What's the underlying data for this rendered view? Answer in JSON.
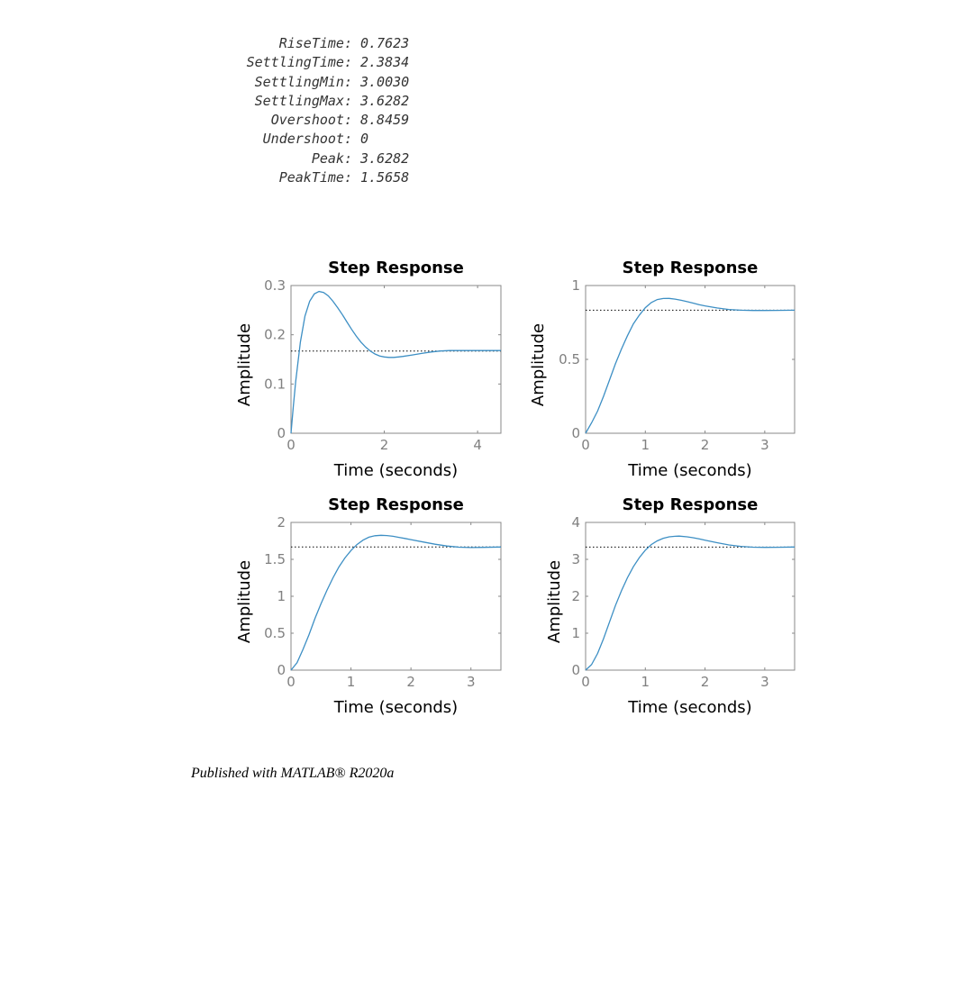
{
  "stepinfo": [
    {
      "key": "RiseTime:",
      "value": "0.7623"
    },
    {
      "key": "SettlingTime:",
      "value": "2.3834"
    },
    {
      "key": "SettlingMin:",
      "value": "3.0030"
    },
    {
      "key": "SettlingMax:",
      "value": "3.6282"
    },
    {
      "key": "Overshoot:",
      "value": "8.8459"
    },
    {
      "key": "Undershoot:",
      "value": "0"
    },
    {
      "key": "Peak:",
      "value": "3.6282"
    },
    {
      "key": "PeakTime:",
      "value": "1.5658"
    }
  ],
  "footer": "Published with MATLAB® R2020a",
  "colors": {
    "line": "#3d8fc4",
    "axis": "#888888",
    "final_value_line": "#000000"
  },
  "chart_data": [
    {
      "type": "line",
      "title": "Step Response",
      "xlabel": "Time (seconds)",
      "ylabel": "Amplitude",
      "xlim": [
        0,
        4.5
      ],
      "ylim": [
        0,
        0.3
      ],
      "xticks": [
        0,
        2,
        4
      ],
      "yticks": [
        0,
        0.1,
        0.2,
        0.3
      ],
      "final_value": 0.167,
      "x": [
        0,
        0.05,
        0.1,
        0.2,
        0.3,
        0.4,
        0.5,
        0.6,
        0.7,
        0.8,
        0.9,
        1.0,
        1.1,
        1.2,
        1.3,
        1.4,
        1.5,
        1.6,
        1.7,
        1.8,
        1.9,
        2.0,
        2.1,
        2.2,
        2.3,
        2.4,
        2.6,
        2.8,
        3.0,
        3.2,
        3.4,
        3.6,
        3.8,
        4.0,
        4.2,
        4.5
      ],
      "y": [
        0,
        0.055,
        0.105,
        0.185,
        0.238,
        0.268,
        0.283,
        0.288,
        0.286,
        0.279,
        0.268,
        0.255,
        0.241,
        0.226,
        0.211,
        0.197,
        0.185,
        0.175,
        0.167,
        0.161,
        0.157,
        0.155,
        0.154,
        0.154,
        0.155,
        0.156,
        0.159,
        0.162,
        0.165,
        0.167,
        0.168,
        0.168,
        0.168,
        0.168,
        0.168,
        0.168
      ]
    },
    {
      "type": "line",
      "title": "Step Response",
      "xlabel": "Time (seconds)",
      "ylabel": "Amplitude",
      "xlim": [
        0,
        3.5
      ],
      "ylim": [
        0,
        1
      ],
      "xticks": [
        0,
        1,
        2,
        3
      ],
      "yticks": [
        0,
        0.5,
        1
      ],
      "final_value": 0.833,
      "x": [
        0,
        0.1,
        0.2,
        0.3,
        0.4,
        0.5,
        0.6,
        0.7,
        0.8,
        0.9,
        1.0,
        1.1,
        1.2,
        1.3,
        1.4,
        1.5,
        1.6,
        1.7,
        1.8,
        1.9,
        2.0,
        2.2,
        2.4,
        2.6,
        2.8,
        3.0,
        3.2,
        3.5
      ],
      "y": [
        0,
        0.07,
        0.15,
        0.25,
        0.36,
        0.47,
        0.57,
        0.66,
        0.74,
        0.8,
        0.85,
        0.885,
        0.905,
        0.912,
        0.913,
        0.908,
        0.9,
        0.891,
        0.881,
        0.871,
        0.862,
        0.848,
        0.838,
        0.833,
        0.831,
        0.831,
        0.832,
        0.833
      ]
    },
    {
      "type": "line",
      "title": "Step Response",
      "xlabel": "Time (seconds)",
      "ylabel": "Amplitude",
      "xlim": [
        0,
        3.5
      ],
      "ylim": [
        0,
        2
      ],
      "xticks": [
        0,
        1,
        2,
        3
      ],
      "yticks": [
        0,
        0.5,
        1,
        1.5,
        2
      ],
      "final_value": 1.667,
      "x": [
        0,
        0.1,
        0.2,
        0.3,
        0.4,
        0.5,
        0.6,
        0.7,
        0.8,
        0.9,
        1.0,
        1.1,
        1.2,
        1.3,
        1.4,
        1.5,
        1.6,
        1.7,
        1.8,
        1.9,
        2.0,
        2.2,
        2.4,
        2.6,
        2.8,
        3.0,
        3.2,
        3.5
      ],
      "y": [
        0,
        0.1,
        0.28,
        0.48,
        0.7,
        0.9,
        1.08,
        1.25,
        1.4,
        1.52,
        1.62,
        1.7,
        1.76,
        1.8,
        1.82,
        1.826,
        1.822,
        1.812,
        1.798,
        1.783,
        1.767,
        1.735,
        1.705,
        1.68,
        1.665,
        1.66,
        1.662,
        1.667
      ]
    },
    {
      "type": "line",
      "title": "Step Response",
      "xlabel": "Time (seconds)",
      "ylabel": "Amplitude",
      "xlim": [
        0,
        3.5
      ],
      "ylim": [
        0,
        4
      ],
      "xticks": [
        0,
        1,
        2,
        3
      ],
      "yticks": [
        0,
        1,
        2,
        3,
        4
      ],
      "final_value": 3.333,
      "x": [
        0,
        0.1,
        0.2,
        0.3,
        0.4,
        0.5,
        0.6,
        0.7,
        0.8,
        0.9,
        1.0,
        1.1,
        1.2,
        1.3,
        1.4,
        1.5,
        1.5658,
        1.7,
        1.8,
        1.9,
        2.0,
        2.2,
        2.4,
        2.6,
        2.8,
        3.0,
        3.2,
        3.5
      ],
      "y": [
        0,
        0.15,
        0.45,
        0.85,
        1.3,
        1.75,
        2.15,
        2.5,
        2.8,
        3.05,
        3.25,
        3.4,
        3.5,
        3.57,
        3.61,
        3.625,
        3.6282,
        3.61,
        3.585,
        3.555,
        3.52,
        3.45,
        3.39,
        3.35,
        3.33,
        3.325,
        3.328,
        3.333
      ]
    }
  ]
}
